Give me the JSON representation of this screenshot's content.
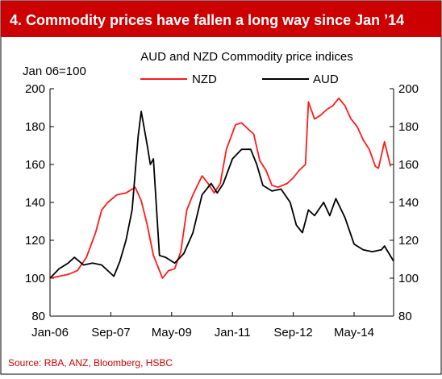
{
  "header": {
    "title": "4. Commodity prices have fallen a long way since Jan ’14"
  },
  "source": "Source: RBA, ANZ, Bloomberg, HSBC",
  "colors": {
    "title_bar": "#cc0000",
    "nzd": "#ff1a1a",
    "aud": "#000000",
    "source_text": "#cc0000"
  },
  "chart_data": {
    "type": "line",
    "title": "AUD and NZD Commodity price indices",
    "y_unit_label": "Jan 06=100",
    "ylim": [
      80,
      200
    ],
    "y_ticks": [
      80,
      100,
      120,
      140,
      160,
      180,
      200
    ],
    "y_tick_labels": [
      "80",
      "100",
      "120",
      "140",
      "160",
      "180",
      "200"
    ],
    "x_range": [
      "2006-01",
      "2015-06"
    ],
    "x_ticks": [
      "2006-01",
      "2007-09",
      "2009-05",
      "2011-01",
      "2012-09",
      "2014-05"
    ],
    "x_tick_labels": [
      "Jan-06",
      "Sep-07",
      "May-09",
      "Jan-11",
      "Sep-12",
      "May-14"
    ],
    "grid": false,
    "legend_position": "top",
    "series": [
      {
        "name": "NZD",
        "color": "#ff1a1a",
        "points": [
          [
            "2006-01",
            100
          ],
          [
            "2006-04",
            101
          ],
          [
            "2006-07",
            102
          ],
          [
            "2006-10",
            104
          ],
          [
            "2007-01",
            111
          ],
          [
            "2007-04",
            124
          ],
          [
            "2007-06",
            136
          ],
          [
            "2007-08",
            140
          ],
          [
            "2007-11",
            144
          ],
          [
            "2008-02",
            145
          ],
          [
            "2008-05",
            148
          ],
          [
            "2008-07",
            141
          ],
          [
            "2008-09",
            128
          ],
          [
            "2008-11",
            112
          ],
          [
            "2009-02",
            100
          ],
          [
            "2009-04",
            104
          ],
          [
            "2009-06",
            105
          ],
          [
            "2009-08",
            114
          ],
          [
            "2009-10",
            136
          ],
          [
            "2009-12",
            144
          ],
          [
            "2010-03",
            154
          ],
          [
            "2010-05",
            150
          ],
          [
            "2010-07",
            145
          ],
          [
            "2010-09",
            150
          ],
          [
            "2010-11",
            168
          ],
          [
            "2011-02",
            181
          ],
          [
            "2011-04",
            182
          ],
          [
            "2011-06",
            179
          ],
          [
            "2011-08",
            176
          ],
          [
            "2011-10",
            162
          ],
          [
            "2011-12",
            157
          ],
          [
            "2012-02",
            149
          ],
          [
            "2012-04",
            148
          ],
          [
            "2012-07",
            150
          ],
          [
            "2012-09",
            153
          ],
          [
            "2012-11",
            157
          ],
          [
            "2013-01",
            160
          ],
          [
            "2013-02",
            193
          ],
          [
            "2013-04",
            184
          ],
          [
            "2013-06",
            186
          ],
          [
            "2013-08",
            189
          ],
          [
            "2013-10",
            191
          ],
          [
            "2013-12",
            195
          ],
          [
            "2014-02",
            191
          ],
          [
            "2014-04",
            184
          ],
          [
            "2014-06",
            180
          ],
          [
            "2014-08",
            173
          ],
          [
            "2014-10",
            168
          ],
          [
            "2014-12",
            159
          ],
          [
            "2015-01",
            158
          ],
          [
            "2015-03",
            172
          ],
          [
            "2015-05",
            159
          ]
        ]
      },
      {
        "name": "AUD",
        "color": "#000000",
        "points": [
          [
            "2006-01",
            100
          ],
          [
            "2006-04",
            105
          ],
          [
            "2006-07",
            108
          ],
          [
            "2006-09",
            111
          ],
          [
            "2006-12",
            107
          ],
          [
            "2007-03",
            108
          ],
          [
            "2007-06",
            107
          ],
          [
            "2007-08",
            104
          ],
          [
            "2007-10",
            101
          ],
          [
            "2007-12",
            109
          ],
          [
            "2008-02",
            120
          ],
          [
            "2008-04",
            136
          ],
          [
            "2008-06",
            175
          ],
          [
            "2008-07",
            188
          ],
          [
            "2008-09",
            170
          ],
          [
            "2008-10",
            160
          ],
          [
            "2008-11",
            163
          ],
          [
            "2009-01",
            112
          ],
          [
            "2009-03",
            111
          ],
          [
            "2009-06",
            108
          ],
          [
            "2009-09",
            113
          ],
          [
            "2009-12",
            124
          ],
          [
            "2010-03",
            144
          ],
          [
            "2010-06",
            150
          ],
          [
            "2010-08",
            145
          ],
          [
            "2010-10",
            150
          ],
          [
            "2011-01",
            163
          ],
          [
            "2011-04",
            168
          ],
          [
            "2011-07",
            168
          ],
          [
            "2011-09",
            160
          ],
          [
            "2011-11",
            149
          ],
          [
            "2012-02",
            146
          ],
          [
            "2012-05",
            147
          ],
          [
            "2012-08",
            140
          ],
          [
            "2012-10",
            128
          ],
          [
            "2012-12",
            124
          ],
          [
            "2013-02",
            136
          ],
          [
            "2013-04",
            133
          ],
          [
            "2013-07",
            140
          ],
          [
            "2013-09",
            133
          ],
          [
            "2013-11",
            142
          ],
          [
            "2014-02",
            132
          ],
          [
            "2014-05",
            118
          ],
          [
            "2014-08",
            115
          ],
          [
            "2014-11",
            114
          ],
          [
            "2015-02",
            115
          ],
          [
            "2015-03",
            117
          ],
          [
            "2015-06",
            109
          ]
        ]
      }
    ]
  }
}
